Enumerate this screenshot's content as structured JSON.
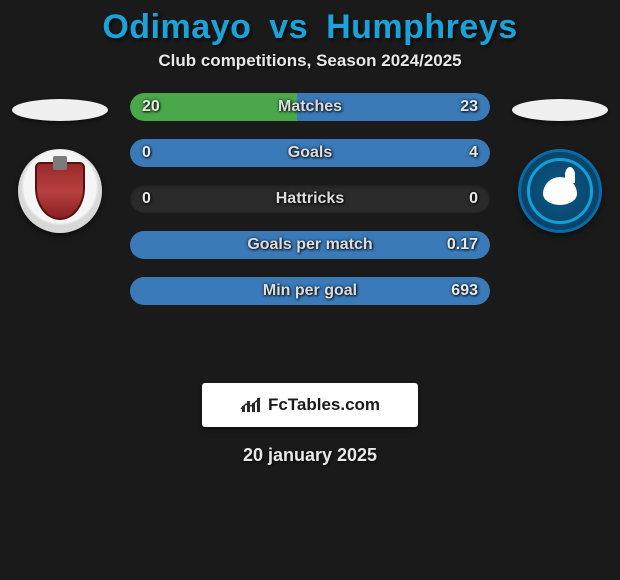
{
  "title": {
    "player1": "Odimayo",
    "vs": "vs",
    "player2": "Humphreys",
    "color": "#1aa3d8"
  },
  "subtitle": "Club competitions, Season 2024/2025",
  "left": {
    "nation_ellipse_bg": "#f0f0f0",
    "club_badge_bg": "#f0f0f0"
  },
  "right": {
    "nation_ellipse_bg": "#f0f0f0",
    "club_badge_bg": "#0a5080"
  },
  "stats": {
    "bar_left_color": "#4aa84a",
    "bar_right_color": "#3a7ab8",
    "track_color": "#2a2a2a",
    "rows": [
      {
        "label": "Matches",
        "left_val": "20",
        "right_val": "23",
        "left_pct": 46.5,
        "right_pct": 53.5
      },
      {
        "label": "Goals",
        "left_val": "0",
        "right_val": "4",
        "left_pct": 0,
        "right_pct": 100
      },
      {
        "label": "Hattricks",
        "left_val": "0",
        "right_val": "0",
        "left_pct": 0,
        "right_pct": 0
      },
      {
        "label": "Goals per match",
        "left_val": "",
        "right_val": "0.17",
        "left_pct": 0,
        "right_pct": 100
      },
      {
        "label": "Min per goal",
        "left_val": "",
        "right_val": "693",
        "left_pct": 0,
        "right_pct": 100
      }
    ]
  },
  "attribution": {
    "text": "FcTables.com",
    "icon_color": "#2a2a2a"
  },
  "date": "20 january 2025"
}
